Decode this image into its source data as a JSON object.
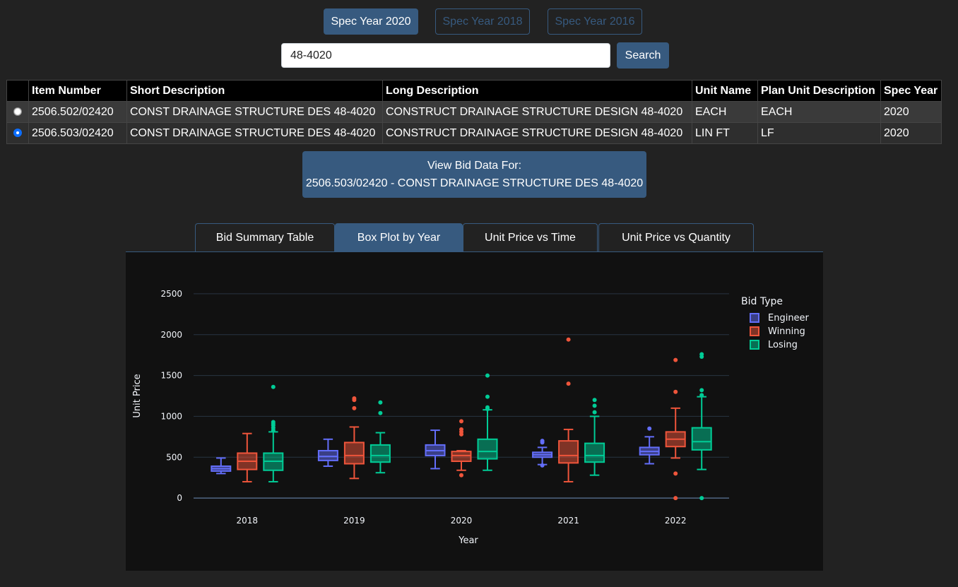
{
  "spec_buttons": [
    {
      "label": "Spec Year 2020",
      "active": true
    },
    {
      "label": "Spec Year 2018",
      "active": false
    },
    {
      "label": "Spec Year 2016",
      "active": false
    }
  ],
  "search": {
    "value": "48-4020",
    "button_label": "Search"
  },
  "table": {
    "columns": [
      "Item Number",
      "Short Description",
      "Long Description",
      "Unit Name",
      "Plan Unit Description",
      "Spec Year"
    ],
    "rows": [
      {
        "selected": false,
        "cells": [
          "2506.502/02420",
          "CONST DRAINAGE STRUCTURE DES 48-4020",
          "CONSTRUCT DRAINAGE STRUCTURE DESIGN 48-4020",
          "EACH",
          "EACH",
          "2020"
        ]
      },
      {
        "selected": true,
        "cells": [
          "2506.503/02420",
          "CONST DRAINAGE STRUCTURE DES 48-4020",
          "CONSTRUCT DRAINAGE STRUCTURE DESIGN 48-4020",
          "LIN FT",
          "LF",
          "2020"
        ]
      }
    ]
  },
  "view_bid": {
    "line1": "View Bid Data For:",
    "line2": "2506.503/02420 - CONST DRAINAGE STRUCTURE DES 48-4020"
  },
  "tabs": [
    {
      "label": "Bid Summary Table",
      "active": false
    },
    {
      "label": "Box Plot by Year",
      "active": true
    },
    {
      "label": "Unit Price vs Time",
      "active": false
    },
    {
      "label": "Unit Price vs Quantity",
      "active": false
    }
  ],
  "chart_data": {
    "type": "box",
    "xlabel": "Year",
    "ylabel": "Unit Price",
    "categories": [
      "2018",
      "2019",
      "2020",
      "2021",
      "2022"
    ],
    "ylim": [
      -250,
      2750
    ],
    "yticks": [
      0,
      500,
      1000,
      1500,
      2000,
      2500
    ],
    "grid": true,
    "legend": {
      "title": "Bid Type",
      "placement": "top-right"
    },
    "series": [
      {
        "name": "Engineer",
        "color": "#636efa",
        "boxes": [
          {
            "min": 300,
            "q1": 330,
            "median": 360,
            "q3": 390,
            "max": 490,
            "outliers": []
          },
          {
            "min": 390,
            "q1": 460,
            "median": 510,
            "q3": 580,
            "max": 720,
            "outliers": []
          },
          {
            "min": 360,
            "q1": 520,
            "median": 580,
            "q3": 650,
            "max": 830,
            "outliers": []
          },
          {
            "min": 410,
            "q1": 500,
            "median": 530,
            "q3": 560,
            "max": 620,
            "outliers": [
              400,
              680,
              700
            ]
          },
          {
            "min": 420,
            "q1": 530,
            "median": 570,
            "q3": 620,
            "max": 750,
            "outliers": [
              850
            ]
          }
        ]
      },
      {
        "name": "Winning",
        "color": "#ef553b",
        "boxes": [
          {
            "min": 200,
            "q1": 350,
            "median": 450,
            "q3": 550,
            "max": 790,
            "outliers": []
          },
          {
            "min": 240,
            "q1": 420,
            "median": 520,
            "q3": 680,
            "max": 870,
            "outliers": [
              1100,
              1200,
              1220
            ]
          },
          {
            "min": 340,
            "q1": 450,
            "median": 520,
            "q3": 570,
            "max": 580,
            "outliers": [
              280,
              780,
              810,
              840,
              940
            ]
          },
          {
            "min": 200,
            "q1": 430,
            "median": 520,
            "q3": 700,
            "max": 840,
            "outliers": [
              1400,
              1940
            ]
          },
          {
            "min": 490,
            "q1": 630,
            "median": 720,
            "q3": 810,
            "max": 1100,
            "outliers": [
              0,
              300,
              1300,
              1690
            ]
          }
        ]
      },
      {
        "name": "Losing",
        "color": "#00cc96",
        "boxes": [
          {
            "min": 200,
            "q1": 340,
            "median": 450,
            "q3": 550,
            "max": 810,
            "outliers": [
              830,
              860,
              890,
              910,
              930,
              1360
            ]
          },
          {
            "min": 310,
            "q1": 440,
            "median": 520,
            "q3": 650,
            "max": 800,
            "outliers": [
              1040,
              1170
            ]
          },
          {
            "min": 340,
            "q1": 480,
            "median": 570,
            "q3": 720,
            "max": 1080,
            "outliers": [
              1090,
              1110,
              1240,
              1500
            ]
          },
          {
            "min": 280,
            "q1": 440,
            "median": 520,
            "q3": 670,
            "max": 1000,
            "outliers": [
              1050,
              1130,
              1200
            ]
          },
          {
            "min": 350,
            "q1": 590,
            "median": 690,
            "q3": 860,
            "max": 1240,
            "outliers": [
              0,
              1260,
              1320,
              1730,
              1760
            ]
          }
        ]
      }
    ]
  }
}
